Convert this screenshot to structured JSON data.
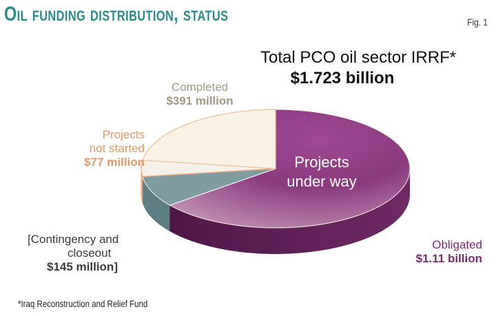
{
  "title": "Oil funding distribution, status",
  "fig_label": "Fig. 1",
  "total": {
    "label": "Total PCO oil sector IRRF*",
    "value": "$1.723 billion"
  },
  "footnote": "*Iraq Reconstruction and Relief Fund",
  "chart_data": {
    "type": "pie",
    "title": "Oil funding distribution, status",
    "slices": [
      {
        "name": "Obligated",
        "label_lines": [
          "Obligated"
        ],
        "value_text": "$1.11 billion",
        "value": 1110,
        "inside_lines": [
          "Projects",
          "under way"
        ],
        "color": "#8e3b83"
      },
      {
        "name": "Contingency and closeout",
        "label_lines": [
          "[Contingency and",
          "closeout"
        ],
        "value_text": "$145 million]",
        "value": 145,
        "color": "#7f9da0"
      },
      {
        "name": "Projects not started",
        "label_lines": [
          "Projects",
          "not started"
        ],
        "value_text": "$77 million",
        "value": 77,
        "color": "#f6f1e8"
      },
      {
        "name": "Completed",
        "label_lines": [
          "Completed"
        ],
        "value_text": "$391 million",
        "value": 391,
        "color": "#f8f1e4"
      }
    ],
    "colors": {
      "obligated_side": "#5e1d55",
      "obligated_light": "#c79abd",
      "contingency_side": "#5d7f83",
      "notstarted_edge": "#e6a77a",
      "completed_edge": "#e9c9a2"
    }
  }
}
